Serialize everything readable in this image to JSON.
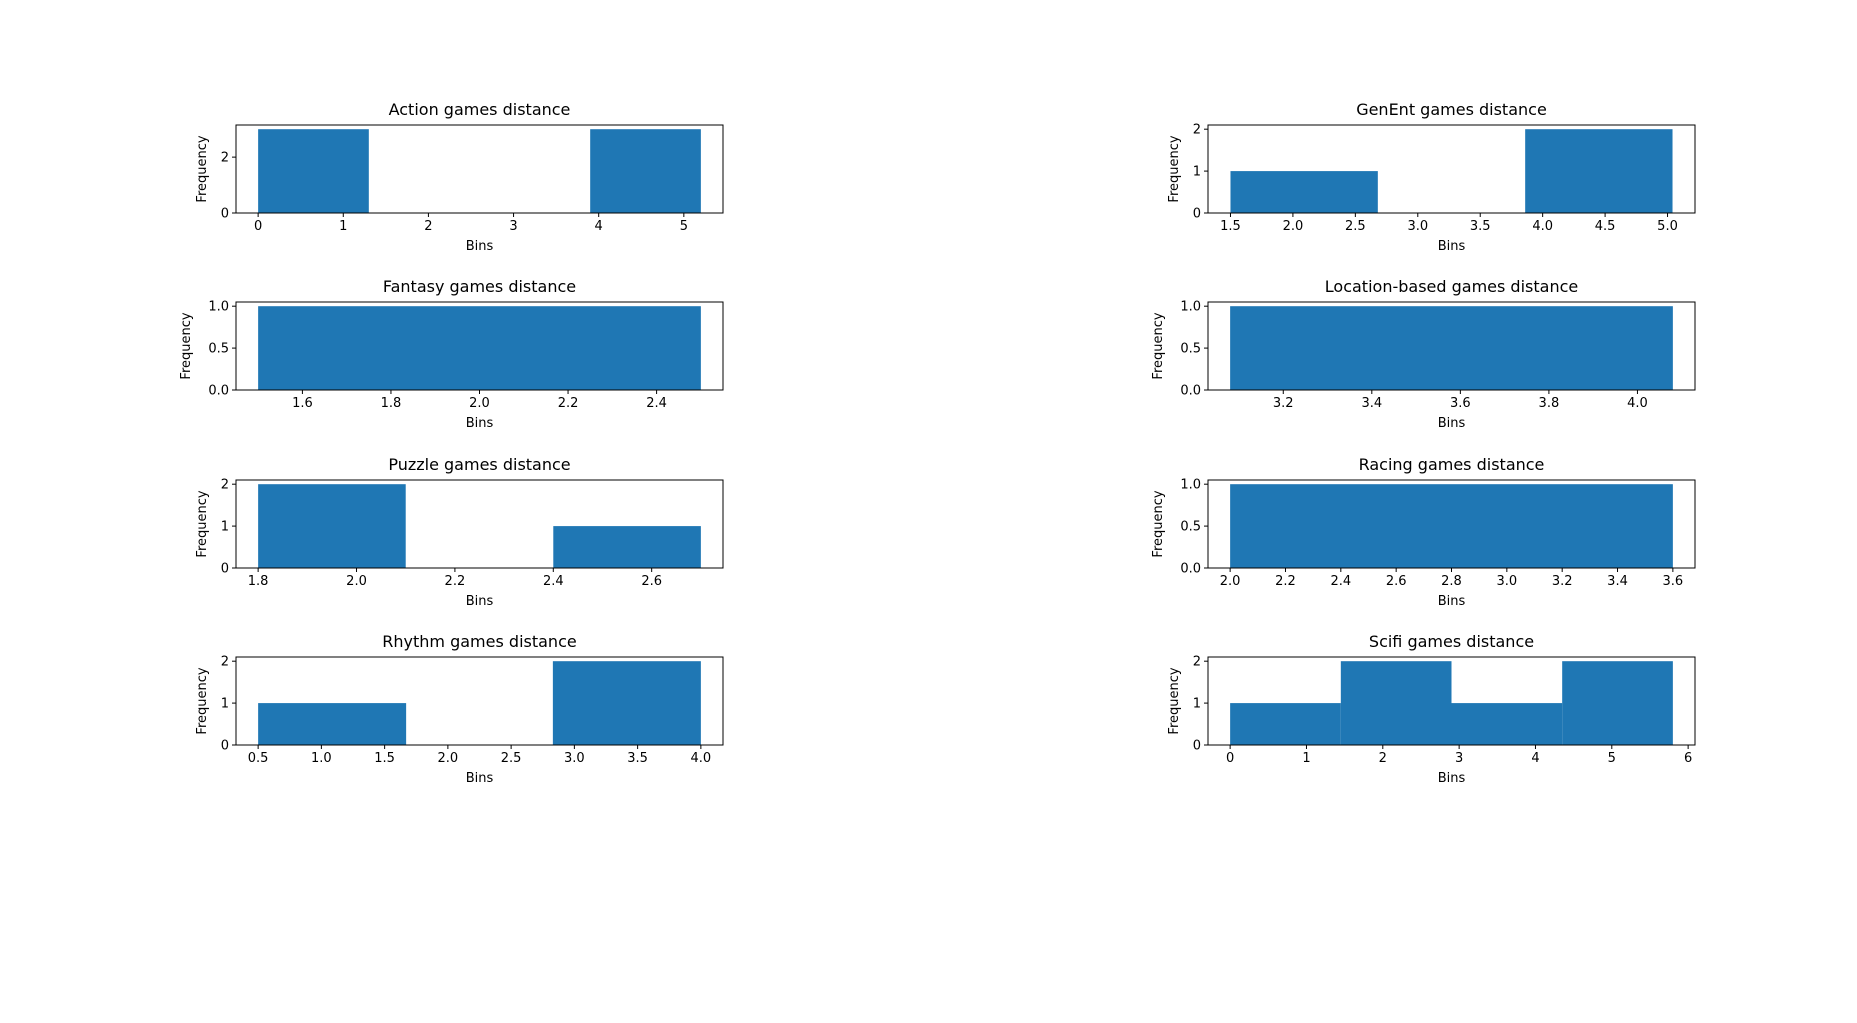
{
  "chart_data": [
    {
      "type": "bar",
      "title": "Action games distance",
      "xlabel": "Bins",
      "ylabel": "Frequency",
      "bins": [
        {
          "x0": 0.0,
          "x1": 1.3,
          "count": 3
        },
        {
          "x0": 3.9,
          "x1": 5.2,
          "count": 3
        }
      ],
      "xlim": [
        -0.26,
        5.46
      ],
      "ylim": [
        0,
        3.15
      ],
      "xticks": [
        0,
        1,
        2,
        3,
        4,
        5
      ],
      "xtick_labels": [
        "0",
        "1",
        "2",
        "3",
        "4",
        "5"
      ],
      "yticks": [
        0,
        2
      ],
      "ytick_labels": [
        "0",
        "2"
      ],
      "color": "#1f77b4"
    },
    {
      "type": "bar",
      "title": "GenEnt games distance",
      "xlabel": "Bins",
      "ylabel": "Frequency",
      "bins": [
        {
          "x0": 1.5,
          "x1": 2.68,
          "count": 1
        },
        {
          "x0": 3.86,
          "x1": 5.04,
          "count": 2
        }
      ],
      "xlim": [
        1.32,
        5.22
      ],
      "ylim": [
        0,
        2.1
      ],
      "xticks": [
        1.5,
        2.0,
        2.5,
        3.0,
        3.5,
        4.0,
        4.5,
        5.0
      ],
      "xtick_labels": [
        "1.5",
        "2.0",
        "2.5",
        "3.0",
        "3.5",
        "4.0",
        "4.5",
        "5.0"
      ],
      "yticks": [
        0,
        1,
        2
      ],
      "ytick_labels": [
        "0",
        "1",
        "2"
      ],
      "color": "#1f77b4"
    },
    {
      "type": "bar",
      "title": "Fantasy games distance",
      "xlabel": "Bins",
      "ylabel": "Frequency",
      "bins": [
        {
          "x0": 1.5,
          "x1": 2.5,
          "count": 1
        }
      ],
      "xlim": [
        1.45,
        2.55
      ],
      "ylim": [
        0,
        1.05
      ],
      "xticks": [
        1.6,
        1.8,
        2.0,
        2.2,
        2.4
      ],
      "xtick_labels": [
        "1.6",
        "1.8",
        "2.0",
        "2.2",
        "2.4"
      ],
      "yticks": [
        0,
        0.5,
        1.0
      ],
      "ytick_labels": [
        "0.0",
        "0.5",
        "1.0"
      ],
      "color": "#1f77b4"
    },
    {
      "type": "bar",
      "title": "Location-based games distance",
      "xlabel": "Bins",
      "ylabel": "Frequency",
      "bins": [
        {
          "x0": 3.08,
          "x1": 4.08,
          "count": 1
        }
      ],
      "xlim": [
        3.03,
        4.13
      ],
      "ylim": [
        0,
        1.05
      ],
      "xticks": [
        3.2,
        3.4,
        3.6,
        3.8,
        4.0
      ],
      "xtick_labels": [
        "3.2",
        "3.4",
        "3.6",
        "3.8",
        "4.0"
      ],
      "yticks": [
        0,
        0.5,
        1.0
      ],
      "ytick_labels": [
        "0.0",
        "0.5",
        "1.0"
      ],
      "color": "#1f77b4"
    },
    {
      "type": "bar",
      "title": "Puzzle games distance",
      "xlabel": "Bins",
      "ylabel": "Frequency",
      "bins": [
        {
          "x0": 1.8,
          "x1": 2.1,
          "count": 2
        },
        {
          "x0": 2.4,
          "x1": 2.7,
          "count": 1
        }
      ],
      "xlim": [
        1.755,
        2.745
      ],
      "ylim": [
        0,
        2.1
      ],
      "xticks": [
        1.8,
        2.0,
        2.2,
        2.4,
        2.6
      ],
      "xtick_labels": [
        "1.8",
        "2.0",
        "2.2",
        "2.4",
        "2.6"
      ],
      "yticks": [
        0,
        1,
        2
      ],
      "ytick_labels": [
        "0",
        "1",
        "2"
      ],
      "color": "#1f77b4"
    },
    {
      "type": "bar",
      "title": "Racing games distance",
      "xlabel": "Bins",
      "ylabel": "Frequency",
      "bins": [
        {
          "x0": 2.0,
          "x1": 3.6,
          "count": 1
        }
      ],
      "xlim": [
        1.92,
        3.68
      ],
      "ylim": [
        0,
        1.05
      ],
      "xticks": [
        2.0,
        2.2,
        2.4,
        2.6,
        2.8,
        3.0,
        3.2,
        3.4,
        3.6
      ],
      "xtick_labels": [
        "2.0",
        "2.2",
        "2.4",
        "2.6",
        "2.8",
        "3.0",
        "3.2",
        "3.4",
        "3.6"
      ],
      "yticks": [
        0,
        0.5,
        1.0
      ],
      "ytick_labels": [
        "0.0",
        "0.5",
        "1.0"
      ],
      "color": "#1f77b4"
    },
    {
      "type": "bar",
      "title": "Rhythm games distance",
      "xlabel": "Bins",
      "ylabel": "Frequency",
      "bins": [
        {
          "x0": 0.5,
          "x1": 1.67,
          "count": 1
        },
        {
          "x0": 2.83,
          "x1": 4.0,
          "count": 2
        }
      ],
      "xlim": [
        0.325,
        4.175
      ],
      "ylim": [
        0,
        2.1
      ],
      "xticks": [
        0.5,
        1.0,
        1.5,
        2.0,
        2.5,
        3.0,
        3.5,
        4.0
      ],
      "xtick_labels": [
        "0.5",
        "1.0",
        "1.5",
        "2.0",
        "2.5",
        "3.0",
        "3.5",
        "4.0"
      ],
      "yticks": [
        0,
        1,
        2
      ],
      "ytick_labels": [
        "0",
        "1",
        "2"
      ],
      "color": "#1f77b4"
    },
    {
      "type": "bar",
      "title": "Scifi games distance",
      "xlabel": "Bins",
      "ylabel": "Frequency",
      "bins": [
        {
          "x0": 0.0,
          "x1": 1.45,
          "count": 1
        },
        {
          "x0": 1.45,
          "x1": 2.9,
          "count": 2
        },
        {
          "x0": 2.9,
          "x1": 4.35,
          "count": 1
        },
        {
          "x0": 4.35,
          "x1": 5.8,
          "count": 2
        }
      ],
      "xlim": [
        -0.29,
        6.09
      ],
      "ylim": [
        0,
        2.1
      ],
      "xticks": [
        0,
        1,
        2,
        3,
        4,
        5,
        6
      ],
      "xtick_labels": [
        "0",
        "1",
        "2",
        "3",
        "4",
        "5",
        "6"
      ],
      "yticks": [
        0,
        1,
        2
      ],
      "ytick_labels": [
        "0",
        "1",
        "2"
      ],
      "color": "#1f77b4"
    }
  ]
}
